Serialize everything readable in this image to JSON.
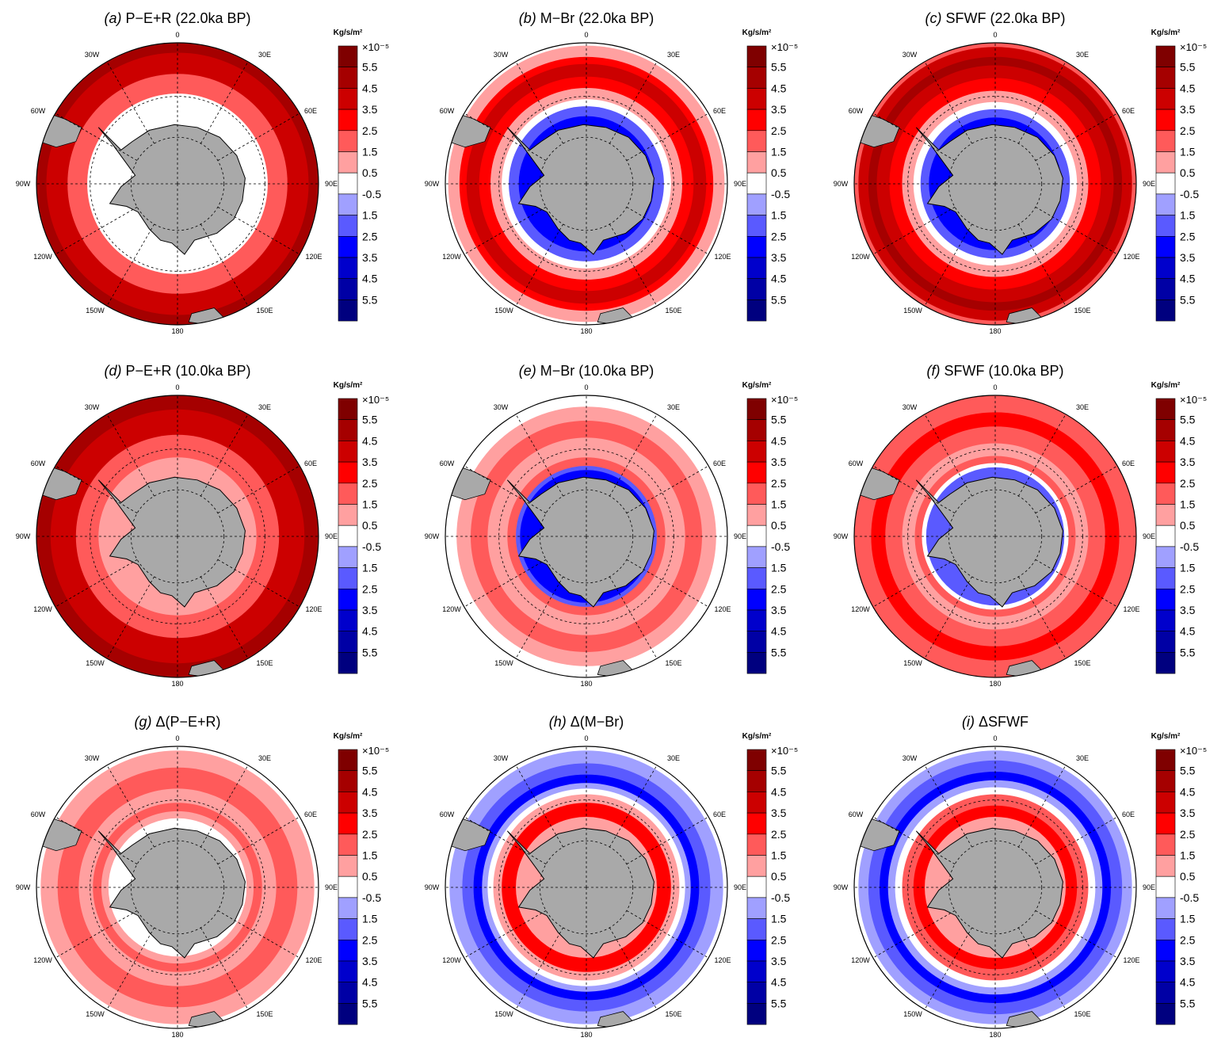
{
  "figure": {
    "units": "Kg/s/m²",
    "scale_label": "×10⁻⁵",
    "colorbar": {
      "labels": [
        "5.5",
        "4.5",
        "3.5",
        "2.5",
        "1.5",
        "0.5",
        "-0.5",
        "1.5",
        "2.5",
        "3.5",
        "4.5",
        "5.5"
      ],
      "colors": [
        "#7f0000",
        "#a50000",
        "#cc0000",
        "#ff0000",
        "#ff5a5a",
        "#ffa0a0",
        "#ffffff",
        "#a0a0ff",
        "#5a5aff",
        "#0000ff",
        "#0000cc",
        "#0000a5",
        "#00007f"
      ]
    },
    "longitude_labels": [
      "0",
      "30E",
      "60E",
      "90E",
      "120E",
      "150E",
      "180",
      "150W",
      "120W",
      "90W",
      "60W",
      "30W"
    ],
    "panels": [
      {
        "id": "a",
        "label": "(a)",
        "title": "P−E+R (22.0ka BP)",
        "bands": [
          {
            "r": 1.0,
            "level": 1
          },
          {
            "r": 0.93,
            "level": 2
          },
          {
            "r": 0.78,
            "level": 4
          },
          {
            "r": 0.64,
            "level": 6
          }
        ]
      },
      {
        "id": "b",
        "label": "(b)",
        "title": "M−Br (22.0ka BP)",
        "bands": [
          {
            "r": 1.0,
            "level": 6
          },
          {
            "r": 0.98,
            "level": 5
          },
          {
            "r": 0.9,
            "level": 3
          },
          {
            "r": 0.85,
            "level": 2
          },
          {
            "r": 0.76,
            "level": 3
          },
          {
            "r": 0.68,
            "level": 5
          },
          {
            "r": 0.6,
            "level": 6
          },
          {
            "r": 0.55,
            "level": 8
          },
          {
            "r": 0.48,
            "level": 9
          }
        ]
      },
      {
        "id": "c",
        "label": "(c)",
        "title": "SFWF (22.0ka BP)",
        "bands": [
          {
            "r": 1.0,
            "level": 4
          },
          {
            "r": 0.97,
            "level": 2
          },
          {
            "r": 0.9,
            "level": 1
          },
          {
            "r": 0.84,
            "level": 2
          },
          {
            "r": 0.75,
            "level": 3
          },
          {
            "r": 0.66,
            "level": 5
          },
          {
            "r": 0.58,
            "level": 6
          },
          {
            "r": 0.53,
            "level": 8
          },
          {
            "r": 0.47,
            "level": 9
          }
        ]
      },
      {
        "id": "d",
        "label": "(d)",
        "title": "P−E+R (10.0ka BP)",
        "bands": [
          {
            "r": 1.0,
            "level": 1
          },
          {
            "r": 0.9,
            "level": 2
          },
          {
            "r": 0.72,
            "level": 4
          },
          {
            "r": 0.56,
            "level": 5
          }
        ]
      },
      {
        "id": "e",
        "label": "(e)",
        "title": "M−Br (10.0ka BP)",
        "bands": [
          {
            "r": 1.0,
            "level": 6
          },
          {
            "r": 0.92,
            "level": 5
          },
          {
            "r": 0.82,
            "level": 4
          },
          {
            "r": 0.7,
            "level": 5
          },
          {
            "r": 0.56,
            "level": 4
          },
          {
            "r": 0.5,
            "level": 8
          },
          {
            "r": 0.47,
            "level": 9
          }
        ]
      },
      {
        "id": "f",
        "label": "(f)",
        "title": "SFWF (10.0ka BP)",
        "bands": [
          {
            "r": 1.0,
            "level": 4
          },
          {
            "r": 0.88,
            "level": 3
          },
          {
            "r": 0.78,
            "level": 4
          },
          {
            "r": 0.66,
            "level": 5
          },
          {
            "r": 0.57,
            "level": 4
          },
          {
            "r": 0.52,
            "level": 6
          },
          {
            "r": 0.49,
            "level": 8
          }
        ]
      },
      {
        "id": "g",
        "label": "(g)",
        "title": "Δ(P−E+R)",
        "bands": [
          {
            "r": 1.0,
            "level": 6
          },
          {
            "r": 0.97,
            "level": 5
          },
          {
            "r": 0.85,
            "level": 4
          },
          {
            "r": 0.7,
            "level": 5
          },
          {
            "r": 0.6,
            "level": 4
          },
          {
            "r": 0.54,
            "level": 5
          },
          {
            "r": 0.49,
            "level": 6
          }
        ]
      },
      {
        "id": "h",
        "label": "(h)",
        "title": "Δ(M−Br)",
        "bands": [
          {
            "r": 1.0,
            "level": 6
          },
          {
            "r": 0.97,
            "level": 7
          },
          {
            "r": 0.88,
            "level": 8
          },
          {
            "r": 0.8,
            "level": 9
          },
          {
            "r": 0.74,
            "level": 7
          },
          {
            "r": 0.7,
            "level": 6
          },
          {
            "r": 0.66,
            "level": 5
          },
          {
            "r": 0.6,
            "level": 3
          },
          {
            "r": 0.5,
            "level": 5
          }
        ]
      },
      {
        "id": "i",
        "label": "(i)",
        "title": "ΔSFWF",
        "bands": [
          {
            "r": 1.0,
            "level": 6
          },
          {
            "r": 0.97,
            "level": 7
          },
          {
            "r": 0.9,
            "level": 8
          },
          {
            "r": 0.82,
            "level": 9
          },
          {
            "r": 0.76,
            "level": 7
          },
          {
            "r": 0.71,
            "level": 6
          },
          {
            "r": 0.66,
            "level": 4
          },
          {
            "r": 0.58,
            "level": 3
          },
          {
            "r": 0.5,
            "level": 5
          }
        ]
      }
    ]
  }
}
